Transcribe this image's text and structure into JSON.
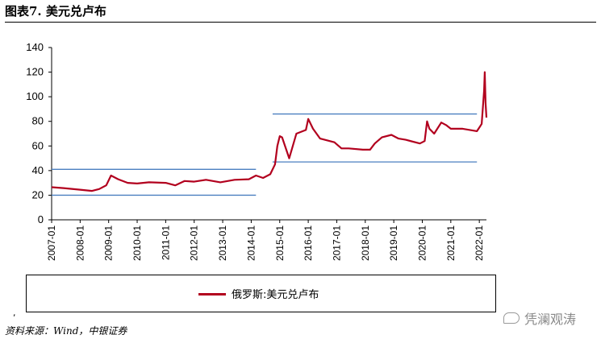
{
  "header": {
    "title": "图表7. 美元兑卢布"
  },
  "chart_data": {
    "type": "line",
    "ylim": [
      0,
      140
    ],
    "yticks": [
      0,
      20,
      40,
      60,
      80,
      100,
      120,
      140
    ],
    "xlim": [
      "2007-01",
      "2022-04"
    ],
    "xtick_labels": [
      "2007-01",
      "2008-01",
      "2009-01",
      "2010-01",
      "2011-01",
      "2012-01",
      "2013-01",
      "2014-01",
      "2015-01",
      "2016-01",
      "2017-01",
      "2018-01",
      "2019-01",
      "2020-01",
      "2021-01",
      "2022-01"
    ],
    "grid": false,
    "legend_position": "bottom",
    "series": [
      {
        "name": "俄罗斯:美元兑卢布",
        "color": "#b2001e",
        "x": [
          "2007-01",
          "2007-06",
          "2008-01",
          "2008-06",
          "2008-09",
          "2008-12",
          "2009-02",
          "2009-05",
          "2009-09",
          "2010-01",
          "2010-06",
          "2011-01",
          "2011-05",
          "2011-09",
          "2012-01",
          "2012-06",
          "2012-12",
          "2013-06",
          "2013-12",
          "2014-03",
          "2014-06",
          "2014-09",
          "2014-11",
          "2014-12",
          "2015-01",
          "2015-02",
          "2015-05",
          "2015-08",
          "2015-12",
          "2016-01",
          "2016-03",
          "2016-06",
          "2016-12",
          "2017-03",
          "2017-06",
          "2017-12",
          "2018-03",
          "2018-05",
          "2018-08",
          "2018-12",
          "2019-03",
          "2019-06",
          "2019-12",
          "2020-02",
          "2020-03",
          "2020-04",
          "2020-06",
          "2020-09",
          "2020-11",
          "2021-01",
          "2021-06",
          "2021-09",
          "2021-12",
          "2022-01",
          "2022-02",
          "2022-03",
          "2022-03-10",
          "2022-03-20",
          "2022-04"
        ],
        "values": [
          26.5,
          25.8,
          24.5,
          23.5,
          25,
          28,
          36,
          33,
          30,
          29.5,
          30.5,
          30,
          28,
          31.5,
          31,
          32.5,
          30.5,
          32.5,
          33,
          36,
          34,
          37,
          45,
          60,
          68,
          67,
          50,
          70,
          73,
          82,
          74,
          66,
          63,
          58,
          58,
          57,
          57,
          62,
          67,
          69,
          66,
          65,
          62,
          64,
          80,
          74,
          70,
          79,
          77,
          74,
          74,
          73,
          72,
          75,
          78,
          105,
          120,
          95,
          83
        ]
      }
    ],
    "annotations": [
      {
        "type": "hline",
        "from": "2007-01",
        "to": "2014-03",
        "value": 20
      },
      {
        "type": "hline",
        "from": "2007-01",
        "to": "2014-03",
        "value": 41
      },
      {
        "type": "hline",
        "from": "2014-10",
        "to": "2021-12",
        "value": 47
      },
      {
        "type": "hline",
        "from": "2014-10",
        "to": "2021-12",
        "value": 86
      }
    ]
  },
  "footer": {
    "source": "资料来源：Wind，中银证券",
    "stray_mark": ",",
    "watermark": "凭澜观涛"
  }
}
